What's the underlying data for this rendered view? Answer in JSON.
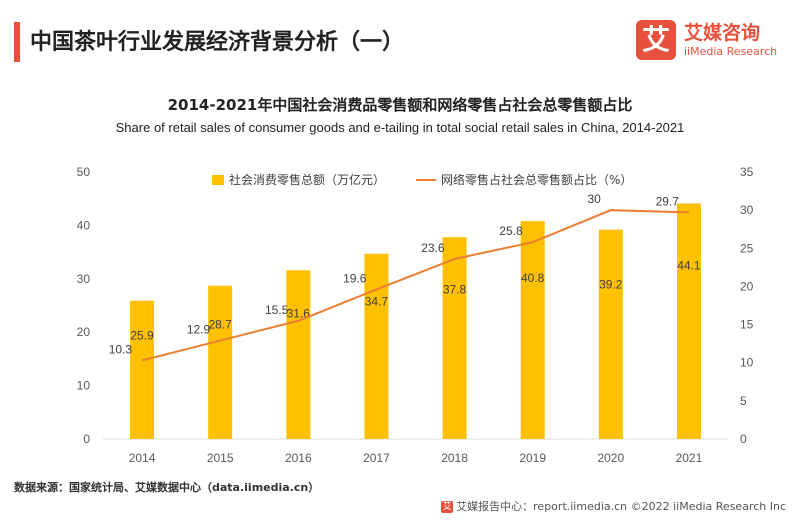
{
  "page": {
    "title": "中国茶叶行业发展经济背景分析（一）",
    "source": "数据来源：国家统计局、艾媒数据中心（data.iimedia.cn）",
    "footer": "艾媒报告中心：report.iimedia.cn  ©2022  iiMedia Research  Inc"
  },
  "logo": {
    "mark": "艾",
    "name_cn": "艾媒咨询",
    "name_en": "iiMedia Research"
  },
  "colors": {
    "accent": "#e8503e",
    "bar": "#ffc000",
    "line": "#ed7d31",
    "axis": "#d9d9d9",
    "tick": "#595959"
  },
  "chart_data": {
    "type": "bar",
    "title": "2014-2021年中国社会消费品零售额和网络零售占社会总零售额占比",
    "subtitle": "Share of retail sales of consumer goods and e-tailing in total social retail sales in China, 2014-2021",
    "categories": [
      "2014",
      "2015",
      "2016",
      "2017",
      "2018",
      "2019",
      "2020",
      "2021"
    ],
    "series": [
      {
        "name": "社会消费零售总额（万亿元）",
        "type": "bar",
        "axis": "left",
        "values": [
          25.9,
          28.7,
          31.6,
          34.7,
          37.8,
          40.8,
          39.2,
          44.1
        ]
      },
      {
        "name": "网络零售占社会总零售额占比（%）",
        "type": "line",
        "axis": "right",
        "values": [
          10.3,
          12.9,
          15.5,
          19.6,
          23.6,
          25.8,
          30,
          29.7
        ]
      }
    ],
    "y_left": {
      "min": 0,
      "max": 50,
      "ticks": [
        0,
        10,
        20,
        30,
        40,
        50
      ]
    },
    "y_right": {
      "min": 0,
      "max": 35,
      "ticks": [
        0,
        5,
        10,
        15,
        20,
        25,
        30,
        35
      ]
    },
    "legend": "top-center",
    "grid": false
  }
}
